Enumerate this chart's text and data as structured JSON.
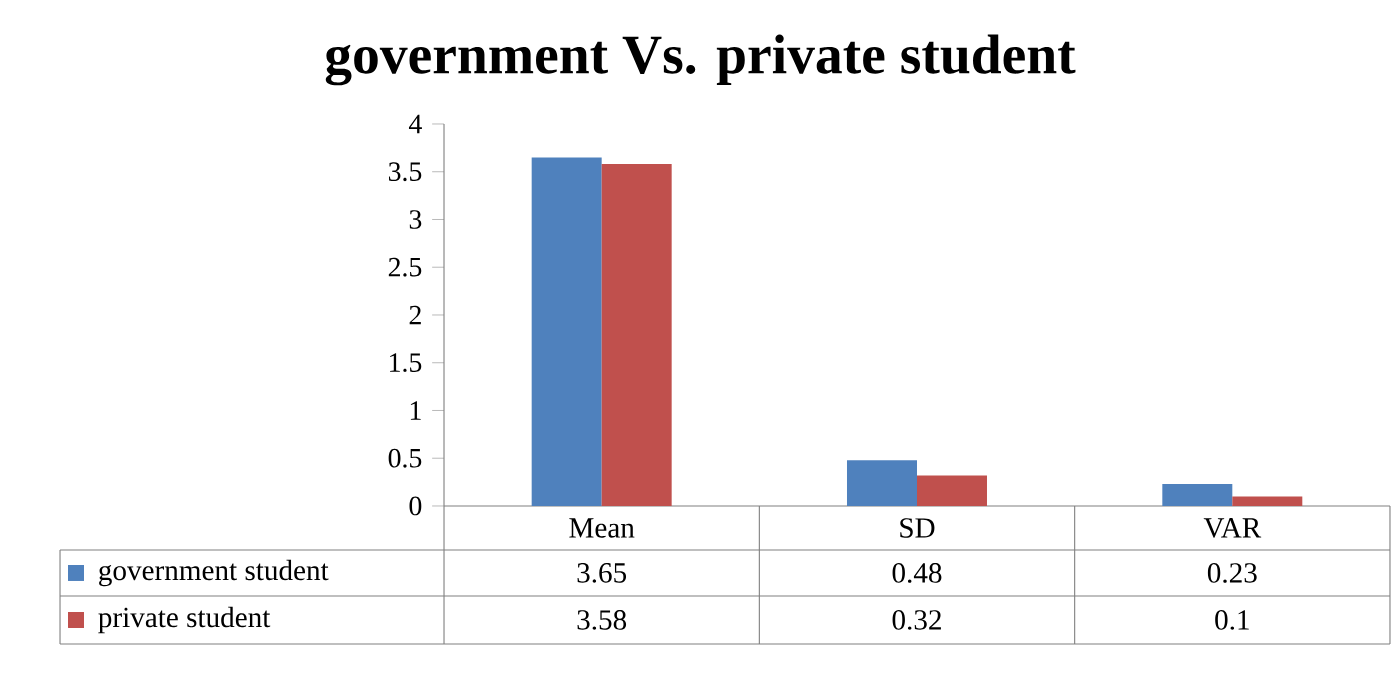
{
  "chart_data": {
    "type": "bar",
    "title": "government  Vs. private  student",
    "categories": [
      "Mean",
      "SD",
      "VAR"
    ],
    "series": [
      {
        "name": "government student",
        "color": "#4f81bd",
        "values": [
          3.65,
          0.48,
          0.23
        ]
      },
      {
        "name": "private student",
        "color": "#c0504d",
        "values": [
          3.58,
          0.32,
          0.1
        ]
      }
    ],
    "ylim": [
      0,
      4
    ],
    "yticks": [
      0,
      0.5,
      1,
      1.5,
      2,
      2.5,
      3,
      3.5,
      4
    ],
    "data_labels": true,
    "legend": "bottom left"
  }
}
